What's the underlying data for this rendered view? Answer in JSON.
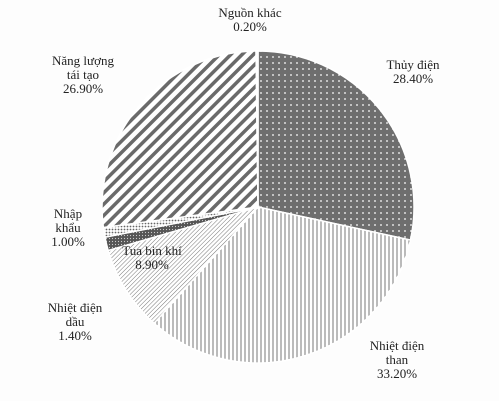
{
  "chart_data": {
    "type": "pie",
    "categories": [
      "Thủy điện",
      "Nhiệt điện than",
      "Tua bin khí",
      "Nhiệt điện dầu",
      "Nhập khẩu",
      "Năng lượng tái tạo",
      "Nguồn khác"
    ],
    "values": [
      28.4,
      33.2,
      8.9,
      1.4,
      1.0,
      26.9,
      0.2
    ],
    "value_labels": [
      "28.40%",
      "33.20%",
      "8.90%",
      "1.40%",
      "1.00%",
      "26.90%",
      "0.20%"
    ]
  }
}
